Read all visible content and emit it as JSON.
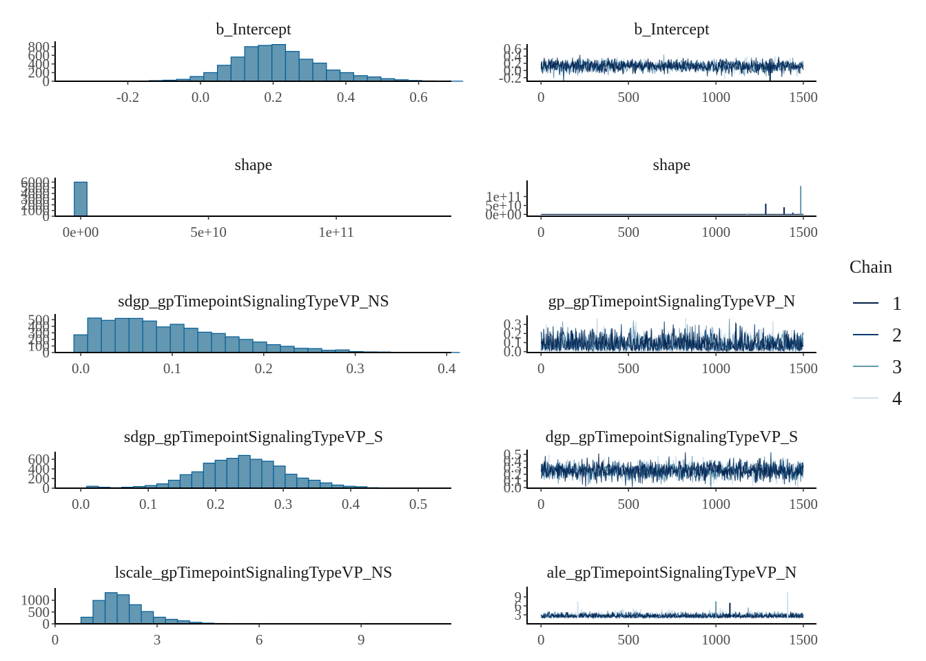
{
  "colors": {
    "hist_fill": "#6497b1",
    "hist_stroke": "#005b96",
    "chain_1": "#011f4b",
    "chain_2": "#03396c",
    "chain_3": "#6497b1",
    "chain_4": "#d1e1ec",
    "axis": "#000000"
  },
  "legend": {
    "title": "Chain",
    "items": [
      {
        "label": "1",
        "color": "#011f4b"
      },
      {
        "label": "2",
        "color": "#03396c"
      },
      {
        "label": "3",
        "color": "#6497b1"
      },
      {
        "label": "4",
        "color": "#d1e1ec"
      }
    ],
    "position": "right"
  },
  "chart_data": [
    {
      "type": "bar",
      "kind": "histogram",
      "title": "b_Intercept",
      "xlim": [
        -0.4,
        0.69
      ],
      "ylim": [
        0,
        860
      ],
      "xticks": [
        {
          "v": -0.2,
          "label": "-0.2"
        },
        {
          "v": 0.0,
          "label": "0.0"
        },
        {
          "v": 0.2,
          "label": "0.2"
        },
        {
          "v": 0.4,
          "label": "0.4"
        },
        {
          "v": 0.6,
          "label": "0.6"
        }
      ],
      "yticks": [
        {
          "v": 0,
          "label": "0"
        },
        {
          "v": 200,
          "label": "200"
        },
        {
          "v": 400,
          "label": "400"
        },
        {
          "v": 600,
          "label": "600"
        },
        {
          "v": 800,
          "label": "800"
        }
      ],
      "bin_start": -0.216,
      "bin_width": 0.0375,
      "values": [
        3,
        5,
        15,
        25,
        45,
        110,
        200,
        370,
        560,
        800,
        830,
        850,
        690,
        510,
        420,
        260,
        200,
        130,
        100,
        60,
        35,
        18,
        8,
        5,
        2
      ]
    },
    {
      "type": "line",
      "kind": "trace",
      "title": "b_Intercept",
      "xlim": [
        -80,
        1575
      ],
      "ylim": [
        -0.3,
        0.66
      ],
      "xticks": [
        {
          "v": 0,
          "label": "0"
        },
        {
          "v": 500,
          "label": "500"
        },
        {
          "v": 1000,
          "label": "1000"
        },
        {
          "v": 1500,
          "label": "1500"
        }
      ],
      "yticks": [
        {
          "v": -0.2,
          "label": "-0.2"
        },
        {
          "v": 0.0,
          "label": "0.0"
        },
        {
          "v": 0.2,
          "label": "0.2"
        },
        {
          "v": 0.4,
          "label": "0.4"
        },
        {
          "v": 0.6,
          "label": "0.6"
        }
      ],
      "iterations": 1500,
      "series_summary": {
        "center": 0.12,
        "spread": 0.1,
        "spikes": [
          {
            "iter": 1310,
            "value": -0.28,
            "chain": 1
          }
        ]
      }
    },
    {
      "type": "bar",
      "kind": "histogram",
      "title": "shape",
      "xlim": [
        -10000000000.0,
        145000000000.0
      ],
      "ylim": [
        0,
        6300
      ],
      "xticks": [
        {
          "v": 0,
          "label": "0e+00"
        },
        {
          "v": 50000000000.0,
          "label": "5e+10"
        },
        {
          "v": 100000000000.0,
          "label": "1e+11"
        }
      ],
      "yticks": [
        {
          "v": 0,
          "label": "0"
        },
        {
          "v": 1000,
          "label": "1000"
        },
        {
          "v": 2000,
          "label": "2000"
        },
        {
          "v": 3000,
          "label": "3000"
        },
        {
          "v": 4000,
          "label": "4000"
        },
        {
          "v": 5000,
          "label": "5000"
        },
        {
          "v": 6000,
          "label": "6000"
        }
      ],
      "bin_start": -2500000000.0,
      "bin_width": 5000000000.0,
      "values": [
        6000
      ]
    },
    {
      "type": "line",
      "kind": "trace",
      "title": "shape",
      "xlim": [
        -80,
        1575
      ],
      "ylim": [
        -10000000000.0,
        175000000000.0
      ],
      "xticks": [
        {
          "v": 0,
          "label": "0"
        },
        {
          "v": 500,
          "label": "500"
        },
        {
          "v": 1000,
          "label": "1000"
        },
        {
          "v": 1500,
          "label": "1500"
        }
      ],
      "yticks": [
        {
          "v": 0,
          "label": "0e+00"
        },
        {
          "v": 50000000000.0,
          "label": "5e+10"
        },
        {
          "v": 100000000000.0,
          "label": "1e+11"
        }
      ],
      "iterations": 1500,
      "series_summary": {
        "center": 0,
        "spread": 0,
        "spikes": [
          {
            "iter": 430,
            "value": 2000000000.0,
            "chain": 1
          },
          {
            "iter": 1180,
            "value": 10000000000.0,
            "chain": 4
          },
          {
            "iter": 1285,
            "value": 60000000000.0,
            "chain": 1
          },
          {
            "iter": 1390,
            "value": 40000000000.0,
            "chain": 1
          },
          {
            "iter": 1440,
            "value": 10000000000.0,
            "chain": 2
          },
          {
            "iter": 1485,
            "value": 160000000000.0,
            "chain": 3
          }
        ]
      }
    },
    {
      "type": "bar",
      "kind": "histogram",
      "title": "sdgp_gpTimepointSignalingTypeVP_NS",
      "xlim": [
        -0.028,
        0.405
      ],
      "ylim": [
        0,
        545
      ],
      "xticks": [
        {
          "v": 0.0,
          "label": "0.0"
        },
        {
          "v": 0.1,
          "label": "0.1"
        },
        {
          "v": 0.2,
          "label": "0.2"
        },
        {
          "v": 0.3,
          "label": "0.3"
        },
        {
          "v": 0.4,
          "label": "0.4"
        }
      ],
      "yticks": [
        {
          "v": 0,
          "label": "0"
        },
        {
          "v": 100,
          "label": "100"
        },
        {
          "v": 200,
          "label": "200"
        },
        {
          "v": 300,
          "label": "300"
        },
        {
          "v": 400,
          "label": "400"
        },
        {
          "v": 500,
          "label": "500"
        }
      ],
      "bin_start": -0.0075,
      "bin_width": 0.01505,
      "values": [
        270,
        525,
        490,
        520,
        520,
        480,
        390,
        430,
        370,
        310,
        290,
        240,
        200,
        160,
        120,
        95,
        65,
        60,
        35,
        40,
        15,
        10,
        8,
        4,
        3,
        2,
        1,
        1
      ]
    },
    {
      "type": "line",
      "kind": "trace",
      "title": "sdgp_gpTimepointSignalingTypeVP_NS",
      "title_visible": "gp_gpTimepointSignalingTypeVP_N",
      "xlim": [
        -80,
        1575
      ],
      "ylim": [
        -0.01,
        0.37
      ],
      "xticks": [
        {
          "v": 0,
          "label": "0"
        },
        {
          "v": 500,
          "label": "500"
        },
        {
          "v": 1000,
          "label": "1000"
        },
        {
          "v": 1500,
          "label": "1500"
        }
      ],
      "yticks": [
        {
          "v": 0.0,
          "label": "0.0"
        },
        {
          "v": 0.1,
          "label": "0.1"
        },
        {
          "v": 0.2,
          "label": "0.2"
        },
        {
          "v": 0.3,
          "label": "0.3"
        }
      ],
      "iterations": 1500,
      "series_summary": {
        "center": 0.12,
        "spread": 0.1,
        "spikes": []
      }
    },
    {
      "type": "bar",
      "kind": "histogram",
      "title": "sdgp_gpTimepointSignalingTypeVP_S",
      "xlim": [
        -0.038,
        0.549
      ],
      "ylim": [
        0,
        700
      ],
      "xticks": [
        {
          "v": 0.0,
          "label": "0.0"
        },
        {
          "v": 0.1,
          "label": "0.1"
        },
        {
          "v": 0.2,
          "label": "0.2"
        },
        {
          "v": 0.3,
          "label": "0.3"
        },
        {
          "v": 0.4,
          "label": "0.4"
        },
        {
          "v": 0.5,
          "label": "0.5"
        }
      ],
      "yticks": [
        {
          "v": 0,
          "label": "0"
        },
        {
          "v": 200,
          "label": "200"
        },
        {
          "v": 400,
          "label": "400"
        },
        {
          "v": 600,
          "label": "600"
        }
      ],
      "bin_start": -0.0085,
      "bin_width": 0.0173,
      "values": [
        5,
        40,
        20,
        10,
        20,
        35,
        55,
        90,
        165,
        280,
        340,
        520,
        580,
        620,
        680,
        600,
        560,
        460,
        290,
        210,
        165,
        110,
        65,
        40,
        30,
        10,
        5,
        3,
        2,
        1
      ]
    },
    {
      "type": "line",
      "kind": "trace",
      "title": "sdgp_gpTimepointSignalingTypeVP_S",
      "title_visible": "dgp_gpTimepointSignalingTypeVP_S",
      "xlim": [
        -80,
        1575
      ],
      "ylim": [
        -0.01,
        0.53
      ],
      "xticks": [
        {
          "v": 0,
          "label": "0"
        },
        {
          "v": 500,
          "label": "500"
        },
        {
          "v": 1000,
          "label": "1000"
        },
        {
          "v": 1500,
          "label": "1500"
        }
      ],
      "yticks": [
        {
          "v": 0.0,
          "label": "0.0"
        },
        {
          "v": 0.1,
          "label": "0.1"
        },
        {
          "v": 0.2,
          "label": "0.2"
        },
        {
          "v": 0.3,
          "label": "0.3"
        },
        {
          "v": 0.4,
          "label": "0.4"
        },
        {
          "v": 0.5,
          "label": "0.5"
        }
      ],
      "iterations": 1500,
      "series_summary": {
        "center": 0.25,
        "spread": 0.08,
        "spikes": [
          {
            "iter": 970,
            "value": 0.03,
            "chain": 3
          },
          {
            "iter": 1210,
            "value": 0.03,
            "chain": 4
          }
        ]
      }
    },
    {
      "type": "bar",
      "kind": "histogram",
      "title": "lscale_gpTimepointSignalingTypeVP_NS",
      "xlim": [
        0,
        11.65
      ],
      "ylim": [
        0,
        1400
      ],
      "xticks": [
        {
          "v": 0,
          "label": "0"
        },
        {
          "v": 3,
          "label": "3"
        },
        {
          "v": 6,
          "label": "6"
        },
        {
          "v": 9,
          "label": "9"
        }
      ],
      "yticks": [
        {
          "v": 0,
          "label": "0"
        },
        {
          "v": 500,
          "label": "500"
        },
        {
          "v": 1000,
          "label": "1000"
        }
      ],
      "bin_start": 0.05,
      "bin_width": 0.355,
      "values": [
        2,
        8,
        280,
        990,
        1320,
        1230,
        810,
        520,
        280,
        190,
        130,
        65,
        30,
        15,
        8,
        5,
        3,
        2,
        2,
        1,
        1,
        1,
        1,
        1,
        1,
        1,
        1,
        1,
        1,
        1,
        1,
        1
      ]
    },
    {
      "type": "line",
      "kind": "trace",
      "title": "lscale_gpTimepointSignalingTypeVP_NS",
      "title_visible": "ale_gpTimepointSignalingTypeVP_N",
      "xlim": [
        -80,
        1575
      ],
      "ylim": [
        0,
        11.5
      ],
      "xticks": [
        {
          "v": 0,
          "label": "0"
        },
        {
          "v": 500,
          "label": "500"
        },
        {
          "v": 1000,
          "label": "1000"
        },
        {
          "v": 1500,
          "label": "1500"
        }
      ],
      "yticks": [
        {
          "v": 3,
          "label": "3"
        },
        {
          "v": 6,
          "label": "6"
        },
        {
          "v": 9,
          "label": "9"
        }
      ],
      "iterations": 1500,
      "series_summary": {
        "center": 2.0,
        "spread": 0.8,
        "spikes": [
          {
            "iter": 210,
            "value": 7.5,
            "chain": 4
          },
          {
            "iter": 1000,
            "value": 7.5,
            "chain": 3
          },
          {
            "iter": 1080,
            "value": 7.0,
            "chain": 1
          },
          {
            "iter": 1410,
            "value": 10.5,
            "chain": 4
          }
        ]
      }
    }
  ]
}
